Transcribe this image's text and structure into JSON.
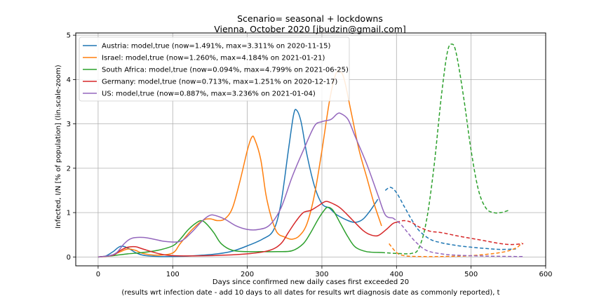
{
  "chart_data": {
    "type": "line",
    "title": "Scenario= seasonal + lockdowns",
    "subtitle": "Vienna, October 2020 [jbudzin@gmail.com]",
    "xlabel": "Days since confirmed new daily cases first exceeded 20",
    "xlabel2": "(results wrt infection date - add 10 days to all dates for results wrt diagnosis date as commonly reported), t",
    "ylabel": "Infected, I/N [% of population] (lin.scale-zoom)",
    "xlim": [
      -30,
      600
    ],
    "ylim": [
      -0.2,
      5.05
    ],
    "xticks": [
      0,
      100,
      200,
      300,
      400,
      500,
      600
    ],
    "yticks": [
      0,
      1,
      2,
      3,
      4,
      5
    ],
    "grid": true,
    "legend_position": "top-left",
    "series": [
      {
        "name": "Austria: model,true (now=1.491%, max=3.311% on 2020-11-15)",
        "color": "#1f77b4",
        "split_x": 380,
        "points": [
          [
            0,
            0
          ],
          [
            10,
            0.02
          ],
          [
            20,
            0.12
          ],
          [
            30,
            0.24
          ],
          [
            40,
            0.2
          ],
          [
            50,
            0.1
          ],
          [
            60,
            0.04
          ],
          [
            80,
            0.01
          ],
          [
            100,
            0.01
          ],
          [
            120,
            0.02
          ],
          [
            140,
            0.04
          ],
          [
            160,
            0.07
          ],
          [
            180,
            0.13
          ],
          [
            200,
            0.25
          ],
          [
            220,
            0.4
          ],
          [
            235,
            0.6
          ],
          [
            245,
            1.2
          ],
          [
            255,
            2.4
          ],
          [
            262,
            3.2
          ],
          [
            266,
            3.311
          ],
          [
            272,
            3.05
          ],
          [
            280,
            2.3
          ],
          [
            290,
            1.6
          ],
          [
            300,
            1.2
          ],
          [
            310,
            1.1
          ],
          [
            320,
            0.95
          ],
          [
            335,
            0.82
          ],
          [
            345,
            0.78
          ],
          [
            355,
            0.85
          ],
          [
            365,
            1.05
          ],
          [
            375,
            1.3
          ],
          [
            385,
            1.5
          ],
          [
            392,
            1.57
          ],
          [
            400,
            1.45
          ],
          [
            410,
            1.15
          ],
          [
            420,
            0.85
          ],
          [
            430,
            0.6
          ],
          [
            445,
            0.4
          ],
          [
            460,
            0.32
          ],
          [
            480,
            0.26
          ],
          [
            500,
            0.22
          ],
          [
            520,
            0.19
          ],
          [
            540,
            0.17
          ],
          [
            560,
            0.18
          ]
        ]
      },
      {
        "name": "Israel: model,true (now=1.260%, max=4.184% on 2021-01-21)",
        "color": "#ff7f0e",
        "split_x": 385,
        "points": [
          [
            0,
            0
          ],
          [
            10,
            0.01
          ],
          [
            20,
            0.05
          ],
          [
            30,
            0.12
          ],
          [
            40,
            0.18
          ],
          [
            50,
            0.15
          ],
          [
            60,
            0.08
          ],
          [
            80,
            0.04
          ],
          [
            100,
            0.09
          ],
          [
            110,
            0.3
          ],
          [
            125,
            0.6
          ],
          [
            140,
            0.82
          ],
          [
            150,
            0.86
          ],
          [
            160,
            0.82
          ],
          [
            170,
            0.86
          ],
          [
            180,
            1.1
          ],
          [
            190,
            1.7
          ],
          [
            200,
            2.4
          ],
          [
            206,
            2.7
          ],
          [
            210,
            2.65
          ],
          [
            218,
            2.2
          ],
          [
            225,
            1.4
          ],
          [
            232,
            0.9
          ],
          [
            240,
            0.55
          ],
          [
            250,
            0.45
          ],
          [
            260,
            0.4
          ],
          [
            270,
            0.48
          ],
          [
            280,
            0.75
          ],
          [
            290,
            1.4
          ],
          [
            300,
            2.4
          ],
          [
            310,
            3.5
          ],
          [
            318,
            4.1
          ],
          [
            324,
            4.184
          ],
          [
            330,
            4.0
          ],
          [
            340,
            3.2
          ],
          [
            350,
            2.4
          ],
          [
            360,
            1.8
          ],
          [
            370,
            1.2
          ],
          [
            380,
            0.7
          ],
          [
            390,
            0.3
          ],
          [
            400,
            0.1
          ],
          [
            410,
            0.03
          ],
          [
            430,
            0.01
          ],
          [
            460,
            0.01
          ],
          [
            500,
            0.03
          ],
          [
            540,
            0.1
          ],
          [
            560,
            0.2
          ],
          [
            568,
            0.32
          ]
        ]
      },
      {
        "name": "South Africa: model,true (now=0.094%, max=4.799% on 2021-06-25)",
        "color": "#2ca02c",
        "split_x": 380,
        "points": [
          [
            0,
            0
          ],
          [
            20,
            0.03
          ],
          [
            40,
            0.07
          ],
          [
            60,
            0.1
          ],
          [
            80,
            0.15
          ],
          [
            100,
            0.25
          ],
          [
            110,
            0.4
          ],
          [
            120,
            0.6
          ],
          [
            130,
            0.75
          ],
          [
            138,
            0.82
          ],
          [
            145,
            0.75
          ],
          [
            155,
            0.55
          ],
          [
            165,
            0.3
          ],
          [
            180,
            0.15
          ],
          [
            200,
            0.12
          ],
          [
            220,
            0.12
          ],
          [
            240,
            0.12
          ],
          [
            260,
            0.14
          ],
          [
            275,
            0.3
          ],
          [
            285,
            0.55
          ],
          [
            295,
            0.85
          ],
          [
            303,
            1.05
          ],
          [
            308,
            1.12
          ],
          [
            315,
            1.05
          ],
          [
            325,
            0.75
          ],
          [
            335,
            0.45
          ],
          [
            345,
            0.22
          ],
          [
            360,
            0.12
          ],
          [
            380,
            0.1
          ],
          [
            400,
            0.08
          ],
          [
            420,
            0.08
          ],
          [
            430,
            0.2
          ],
          [
            440,
            0.8
          ],
          [
            450,
            2.0
          ],
          [
            460,
            3.6
          ],
          [
            468,
            4.6
          ],
          [
            474,
            4.799
          ],
          [
            480,
            4.6
          ],
          [
            490,
            3.6
          ],
          [
            500,
            2.4
          ],
          [
            510,
            1.5
          ],
          [
            520,
            1.1
          ],
          [
            530,
            1.0
          ],
          [
            540,
            1.0
          ],
          [
            550,
            1.05
          ]
        ]
      },
      {
        "name": "Germany: model,true (now=0.713%, max=1.251% on 2020-12-17)",
        "color": "#d62728",
        "split_x": 400,
        "points": [
          [
            0,
            0
          ],
          [
            20,
            0.04
          ],
          [
            30,
            0.15
          ],
          [
            40,
            0.22
          ],
          [
            50,
            0.23
          ],
          [
            60,
            0.18
          ],
          [
            80,
            0.08
          ],
          [
            100,
            0.03
          ],
          [
            150,
            0.03
          ],
          [
            200,
            0.07
          ],
          [
            230,
            0.15
          ],
          [
            245,
            0.3
          ],
          [
            255,
            0.55
          ],
          [
            265,
            0.8
          ],
          [
            275,
            1.0
          ],
          [
            285,
            1.05
          ],
          [
            295,
            1.15
          ],
          [
            305,
            1.251
          ],
          [
            315,
            1.2
          ],
          [
            325,
            1.1
          ],
          [
            340,
            0.85
          ],
          [
            355,
            0.6
          ],
          [
            365,
            0.5
          ],
          [
            375,
            0.48
          ],
          [
            385,
            0.6
          ],
          [
            395,
            0.75
          ],
          [
            400,
            0.78
          ],
          [
            410,
            0.82
          ],
          [
            420,
            0.78
          ],
          [
            430,
            0.68
          ],
          [
            445,
            0.58
          ],
          [
            460,
            0.55
          ],
          [
            480,
            0.48
          ],
          [
            500,
            0.42
          ],
          [
            520,
            0.36
          ],
          [
            540,
            0.3
          ],
          [
            555,
            0.28
          ],
          [
            570,
            0.3
          ]
        ]
      },
      {
        "name": "US: model,true (now=0.887%, max=3.236% on 2021-01-04)",
        "color": "#9467bd",
        "split_x": 395,
        "points": [
          [
            0,
            0
          ],
          [
            15,
            0.03
          ],
          [
            25,
            0.1
          ],
          [
            35,
            0.3
          ],
          [
            45,
            0.42
          ],
          [
            60,
            0.44
          ],
          [
            75,
            0.4
          ],
          [
            90,
            0.35
          ],
          [
            110,
            0.35
          ],
          [
            125,
            0.55
          ],
          [
            140,
            0.82
          ],
          [
            150,
            0.94
          ],
          [
            158,
            0.93
          ],
          [
            170,
            0.85
          ],
          [
            185,
            0.7
          ],
          [
            200,
            0.62
          ],
          [
            215,
            0.62
          ],
          [
            230,
            0.72
          ],
          [
            245,
            1.1
          ],
          [
            260,
            1.8
          ],
          [
            275,
            2.4
          ],
          [
            290,
            2.95
          ],
          [
            300,
            3.05
          ],
          [
            312,
            3.1
          ],
          [
            320,
            3.22
          ],
          [
            325,
            3.236
          ],
          [
            335,
            3.1
          ],
          [
            345,
            2.7
          ],
          [
            360,
            2.1
          ],
          [
            375,
            1.4
          ],
          [
            385,
            0.95
          ],
          [
            395,
            0.88
          ],
          [
            405,
            0.75
          ],
          [
            415,
            0.55
          ],
          [
            425,
            0.35
          ],
          [
            440,
            0.15
          ],
          [
            460,
            0.07
          ],
          [
            480,
            0.04
          ],
          [
            520,
            0.02
          ],
          [
            560,
            0.01
          ],
          [
            570,
            0.01
          ]
        ]
      }
    ]
  }
}
